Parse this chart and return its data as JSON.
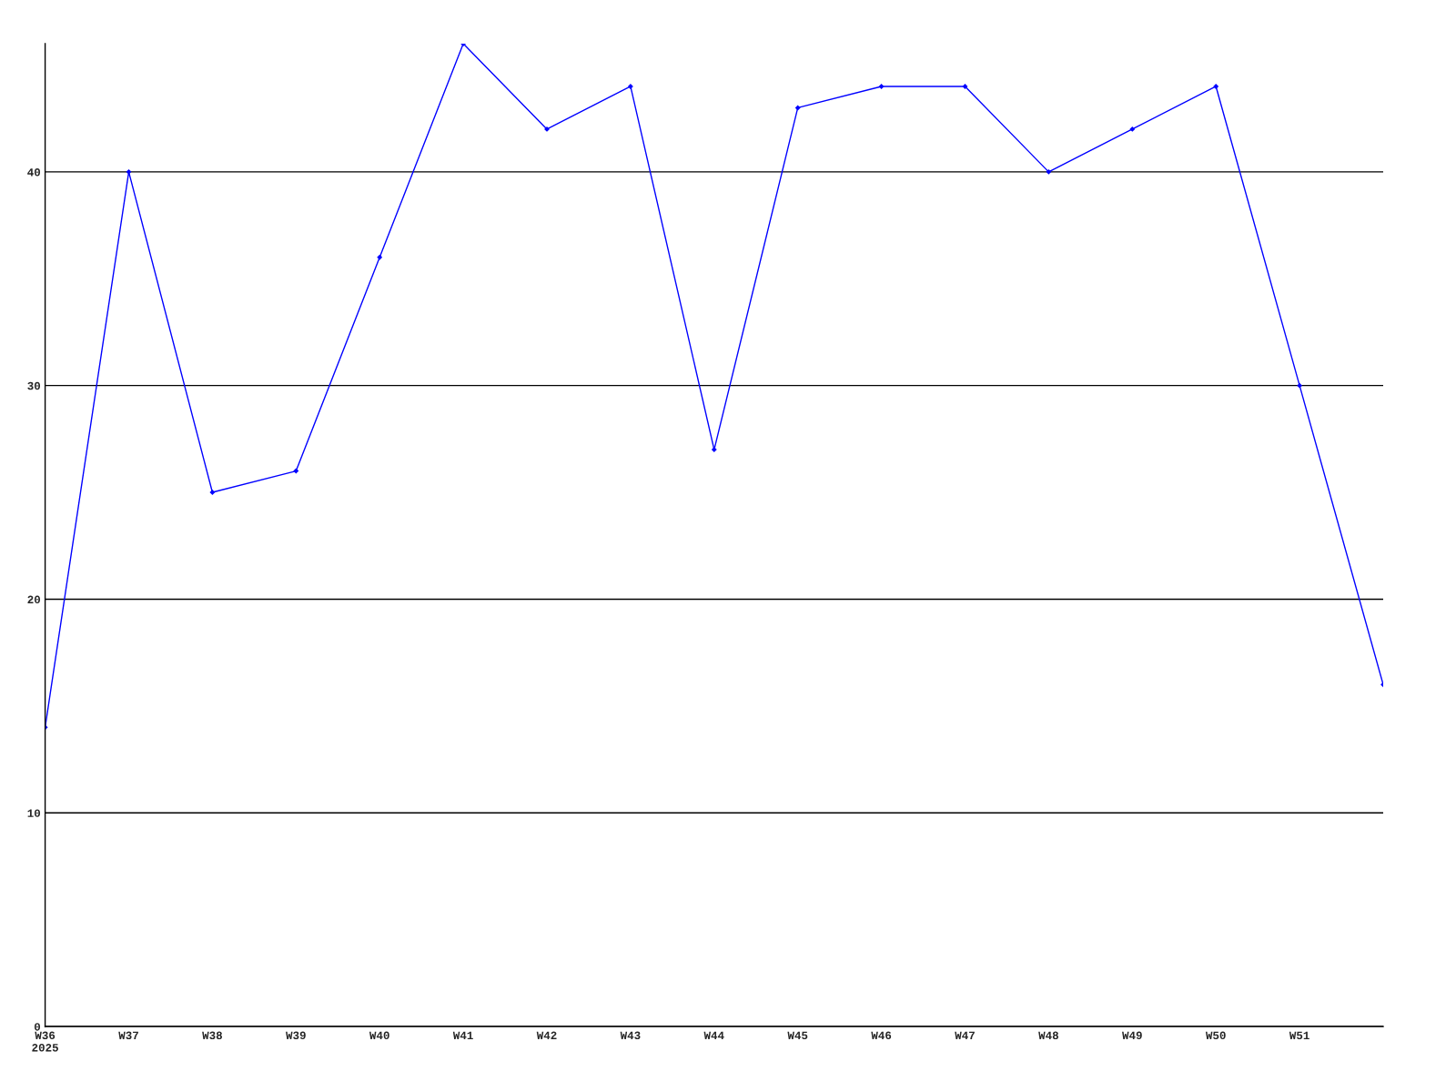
{
  "chart_data": {
    "type": "line",
    "categories": [
      "W36\n2025",
      "W37",
      "W38",
      "W39",
      "W40",
      "W41",
      "W42",
      "W43",
      "W44",
      "W45",
      "W46",
      "W47",
      "W48",
      "W49",
      "W50",
      "W51",
      null
    ],
    "series": [
      {
        "color": "#0000ff",
        "values": [
          14,
          40,
          25,
          26,
          36,
          46,
          42,
          44,
          27,
          43,
          44,
          44,
          40,
          42,
          44,
          30,
          16
        ]
      }
    ],
    "ylim": [
      0,
      46
    ],
    "yticks": [
      0,
      10,
      20,
      30,
      40
    ],
    "grid": "y",
    "marker": "diamond",
    "line_style": "solid"
  }
}
